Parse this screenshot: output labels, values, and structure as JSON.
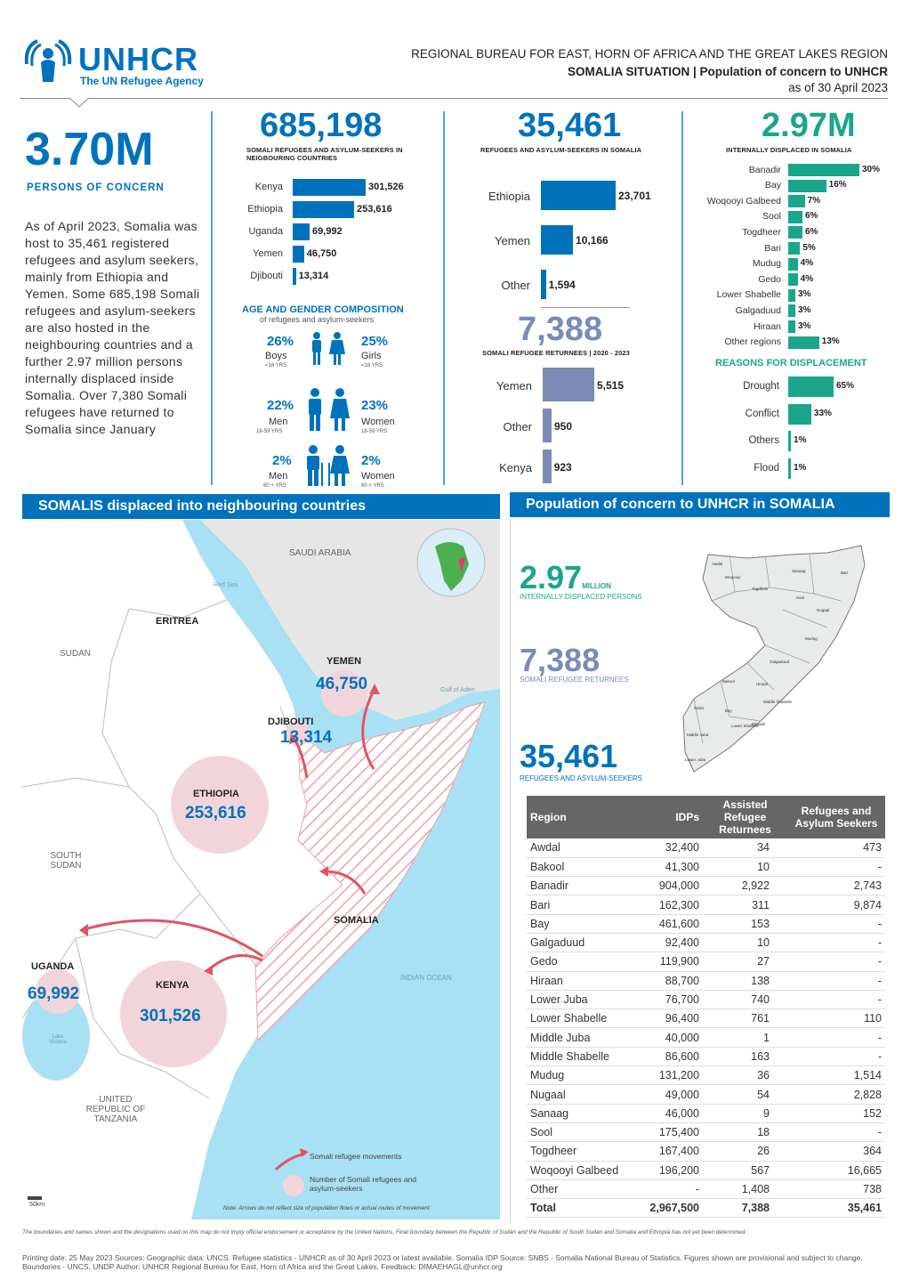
{
  "header": {
    "logo_name": "UNHCR",
    "logo_tagline": "The UN Refugee Agency",
    "line1": "REGIONAL BUREAU FOR EAST, HORN OF AFRICA AND THE GREAT LAKES REGION",
    "line2": "SOMALIA SITUATION | Population of concern to UNHCR",
    "line3": "as of 30 April 2023"
  },
  "summary": {
    "total": "3.70M",
    "total_label": "PERSONS OF CONCERN",
    "text": "As of April 2023, Somalia was host to 35,461 registered refugees and asylum seekers, mainly from Ethiopia and Yemen. Some 685,198 Somali refugees and asylum-seekers are also hosted in the neighbouring countries and a further 2.97 million persons internally displaced inside Somalia. Over 7,380 Somali refugees have returned to Somalia since January"
  },
  "neighbouring": {
    "total": "685,198",
    "label": "SOMALI REFUGEES AND ASYLUM-SEEKERS IN NEIGBOURING COUNTRIES",
    "bars": [
      {
        "label": "Kenya",
        "value": 301526,
        "display": "301,526"
      },
      {
        "label": "Ethiopia",
        "value": 253616,
        "display": "253,616"
      },
      {
        "label": "Uganda",
        "value": 69992,
        "display": "69,992"
      },
      {
        "label": "Yemen",
        "value": 46750,
        "display": "46,750"
      },
      {
        "label": "Djibouti",
        "value": 13314,
        "display": "13,314"
      }
    ],
    "color": "#0072bc"
  },
  "age_gender": {
    "title": "AGE AND GENDER COMPOSITION",
    "subtitle": "of refugees and asylum-seekers",
    "rows": [
      {
        "left_pct": "26%",
        "left_label": "Boys",
        "left_sub": "<18 YRS",
        "right_pct": "25%",
        "right_label": "Girls",
        "right_sub": "<18 YRS"
      },
      {
        "left_pct": "22%",
        "left_label": "Men",
        "left_sub": "18-59 YRS",
        "right_pct": "23%",
        "right_label": "Women",
        "right_sub": "18-59 YRS"
      },
      {
        "left_pct": "2%",
        "left_label": "Men",
        "left_sub": "60 + YRS",
        "right_pct": "2%",
        "right_label": "Women",
        "right_sub": "60 + YRS"
      }
    ]
  },
  "in_somalia": {
    "total": "35,461",
    "label": "REFUGEES AND ASYLUM-SEEKERS IN SOMALIA",
    "bars": [
      {
        "label": "Ethiopia",
        "value": 23701,
        "display": "23,701"
      },
      {
        "label": "Yemen",
        "value": 10166,
        "display": "10,166"
      },
      {
        "label": "Other",
        "value": 1594,
        "display": "1,594"
      }
    ],
    "color": "#0072bc"
  },
  "returnees": {
    "total": "7,388",
    "label": "SOMALI REFUGEE RETURNEES | 2020 - 2023",
    "bars": [
      {
        "label": "Yemen",
        "value": 5515,
        "display": "5,515"
      },
      {
        "label": "Other",
        "value": 950,
        "display": "950"
      },
      {
        "label": "Kenya",
        "value": 923,
        "display": "923"
      }
    ],
    "color": "#7b8bb8"
  },
  "idps": {
    "total": "2.97M",
    "label": "INTERNALLY DISPLACED IN SOMALIA",
    "bars": [
      {
        "label": "Banadir",
        "value": 30,
        "display": "30%"
      },
      {
        "label": "Bay",
        "value": 16,
        "display": "16%"
      },
      {
        "label": "Woqooyi Galbeed",
        "value": 7,
        "display": "7%"
      },
      {
        "label": "Sool",
        "value": 6,
        "display": "6%"
      },
      {
        "label": "Togdheer",
        "value": 6,
        "display": "6%"
      },
      {
        "label": "Bari",
        "value": 5,
        "display": "5%"
      },
      {
        "label": "Mudug",
        "value": 4,
        "display": "4%"
      },
      {
        "label": "Gedo",
        "value": 4,
        "display": "4%"
      },
      {
        "label": "Lower Shabelle",
        "value": 3,
        "display": "3%"
      },
      {
        "label": "Galgaduud",
        "value": 3,
        "display": "3%"
      },
      {
        "label": "Hiraan",
        "value": 3,
        "display": "3%"
      },
      {
        "label": "Other regions",
        "value": 13,
        "display": "13%"
      }
    ],
    "reasons_title": "REASONS FOR DISPLACEMENT",
    "reasons": [
      {
        "label": "Drought",
        "value": 65,
        "display": "65%"
      },
      {
        "label": "Conflict",
        "value": 33,
        "display": "33%"
      },
      {
        "label": "Others",
        "value": 1,
        "display": "1%"
      },
      {
        "label": "Flood",
        "value": 1,
        "display": "1%"
      }
    ],
    "color": "#1aa68a"
  },
  "map_left": {
    "title": "SOMALIS displaced into neighbouring countries",
    "labels": {
      "saudi": "SAUDI ARABIA",
      "eritrea": "ERITREA",
      "sudan": "SUDAN",
      "south_sudan": "SOUTH SUDAN",
      "tanzania": "UNITED REPUBLIC OF TANZANIA",
      "indian_ocean": "INDIAN OCEAN",
      "red_sea": "Red Sea",
      "gulf": "Gulf of Aden",
      "lake": "Lake Victoria"
    },
    "countries": {
      "yemen_name": "YEMEN",
      "yemen_val": "46,750",
      "djibouti_name": "DJIBOUTI",
      "djibouti_val": "13,314",
      "ethiopia_name": "ETHIOPIA",
      "ethiopia_val": "253,616",
      "somalia_name": "SOMALIA",
      "uganda_name": "UGANDA",
      "uganda_val": "69,992",
      "kenya_name": "KENYA",
      "kenya_val": "301,526"
    },
    "legend_movements": "Somali refugee movements",
    "legend_number": "Number of Somali refugees and asylum-seekers",
    "note": "Note: Arrows do not reflect size of population flows or actual routes of movement",
    "scale": "50km"
  },
  "map_right": {
    "title": "Population of concern to UNHCR in SOMALIA",
    "idp_value": "2.97",
    "idp_unit": "MILLION",
    "idp_label": "INTERNALLY DISPLACED PERSONS",
    "ret_value": "7,388",
    "ret_label": "SOMALI REFUGEE RETURNEES",
    "ref_value": "35,461",
    "ref_label": "REFUGEES AND ASYLUM-SEEKERS",
    "map_regions": [
      "Awdal",
      "Woqooyi Galbeed",
      "Togdheer",
      "Sanaag",
      "Sool",
      "Bari",
      "Nugaal",
      "Mudug",
      "Galgaduud",
      "Hiraan",
      "Bakool",
      "Bay",
      "Gedo",
      "Middle Shabelle",
      "Banadir",
      "Lower Shabelle",
      "Middle Juba",
      "Lower Juba"
    ]
  },
  "table": {
    "headers": [
      "Region",
      "IDPs",
      "Assisted Refugee Returnees",
      "Refugees and Asylum Seekers"
    ],
    "rows": [
      [
        "Awdal",
        "32,400",
        "34",
        "473"
      ],
      [
        "Bakool",
        "41,300",
        "10",
        "-"
      ],
      [
        "Banadir",
        "904,000",
        "2,922",
        "2,743"
      ],
      [
        "Bari",
        "162,300",
        "311",
        "9,874"
      ],
      [
        "Bay",
        "461,600",
        "153",
        "-"
      ],
      [
        "Galgaduud",
        "92,400",
        "10",
        "-"
      ],
      [
        "Gedo",
        "119,900",
        "27",
        "-"
      ],
      [
        "Hiraan",
        "88,700",
        "138",
        "-"
      ],
      [
        "Lower Juba",
        "76,700",
        "740",
        "-"
      ],
      [
        "Lower Shabelle",
        "96,400",
        "761",
        "110"
      ],
      [
        "Middle Juba",
        "40,000",
        "1",
        "-"
      ],
      [
        "Middle Shabelle",
        "86,600",
        "163",
        "-"
      ],
      [
        "Mudug",
        "131,200",
        "36",
        "1,514"
      ],
      [
        "Nugaal",
        "49,000",
        "54",
        "2,828"
      ],
      [
        "Sanaag",
        "46,000",
        "9",
        "152"
      ],
      [
        "Sool",
        "175,400",
        "18",
        "-"
      ],
      [
        "Togdheer",
        "167,400",
        "26",
        "364"
      ],
      [
        "Woqooyi Galbeed",
        "196,200",
        "567",
        "16,665"
      ],
      [
        "Other",
        "-",
        "1,408",
        "738"
      ]
    ],
    "total": [
      "Total",
      "2,967,500",
      "7,388",
      "35,461"
    ]
  },
  "footer": {
    "disclaimer": "The boundaries and names shown and the designations used on this map do not imply official endorsement or acceptance by the United Nations. Final boundary between the Republic of Sudan and the Republic of South Sudan and Somalia and Ethiopia has not yet been determined.",
    "sources": "Printing date: 25 May 2023   Sources: Geographic data: UNCS. Refugee statistics - UNHCR as of 30 April 2023 or latest available. Somalia IDP Source: SNBS - Somalia National Bureau of Statistics. Figures shown are provisional and subject to change. Boundaries - UNCS, UNDP   Author: UNHCR Regional Bureau for East, Horn of Africa and the Great Lakes. Feedback: DIMAEHAGL@unhcr.org"
  }
}
